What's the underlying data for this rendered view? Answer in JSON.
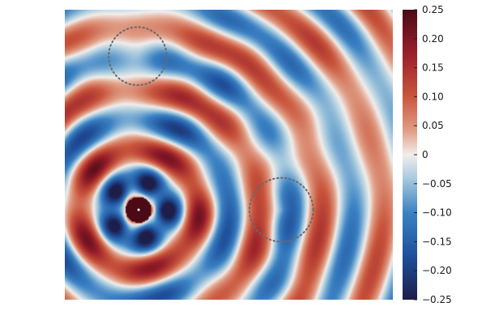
{
  "chart_data": {
    "type": "heatmap",
    "title": "",
    "xlabel": "",
    "ylabel": "",
    "colormap": "balance (dark blue → white → dark red)",
    "colors": {
      "low": "#1d1e4a",
      "mid_low": "#1f63b0",
      "light_low": "#a9cbde",
      "zero": "#f1eeec",
      "light_high": "#e1a088",
      "mid_high": "#b52a2a",
      "high": "#4a0b17"
    },
    "colorbar": {
      "min": -0.25,
      "max": 0.25,
      "ticks": [
        {
          "value": 0.25,
          "label": "0.25"
        },
        {
          "value": 0.2,
          "label": "0.20"
        },
        {
          "value": 0.15,
          "label": "0.15"
        },
        {
          "value": 0.1,
          "label": "0.10"
        },
        {
          "value": 0.05,
          "label": "0.05"
        },
        {
          "value": 0.0,
          "label": "0"
        },
        {
          "value": -0.05,
          "label": "−0.05"
        },
        {
          "value": -0.1,
          "label": "−0.10"
        },
        {
          "value": -0.15,
          "label": "−0.15"
        },
        {
          "value": -0.2,
          "label": "−0.20"
        },
        {
          "value": -0.25,
          "label": "−0.25"
        }
      ]
    },
    "source_point": {
      "x": 0.225,
      "y": 0.31
    },
    "scatterers": [
      {
        "name": "upper",
        "cx": 0.222,
        "cy": 0.84,
        "r": 0.1
      },
      {
        "name": "right",
        "cx": 0.66,
        "cy": 0.31,
        "r": 0.11
      }
    ],
    "grid": false,
    "legend": "colorbar-right"
  }
}
